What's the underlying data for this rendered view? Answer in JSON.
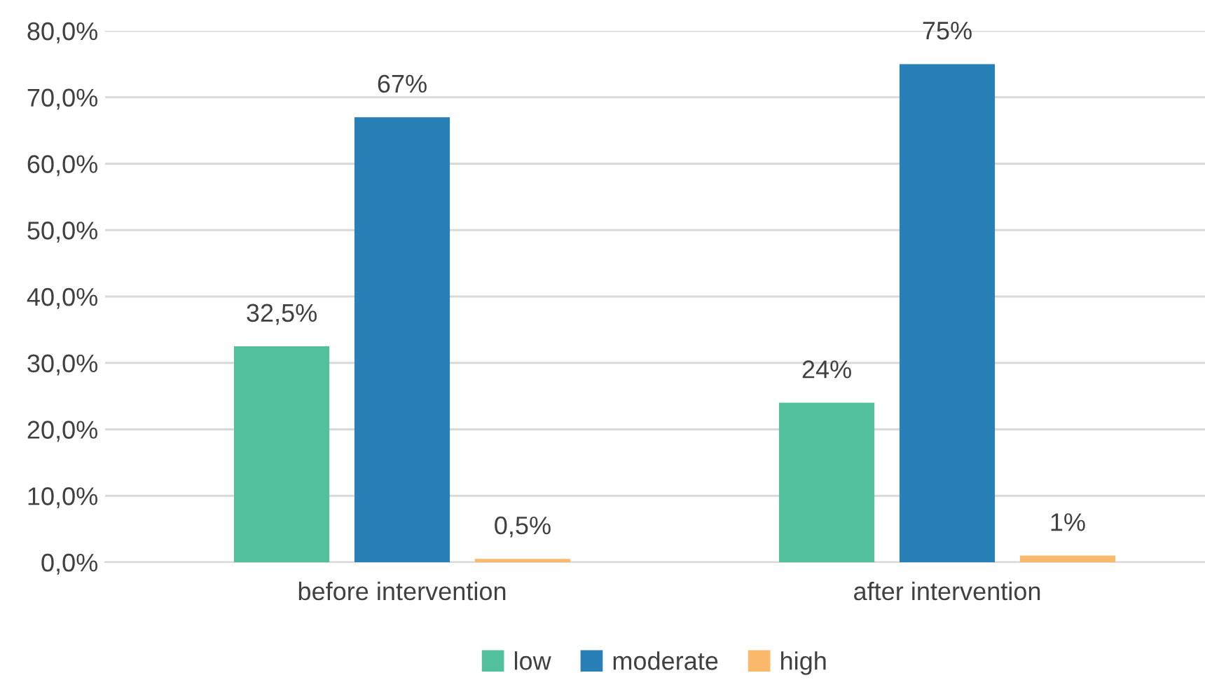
{
  "chart_data": {
    "type": "bar",
    "categories": [
      "before intervention",
      "after intervention"
    ],
    "series": [
      {
        "name": "low",
        "color": "#52c09c",
        "values": [
          32.5,
          24
        ],
        "value_labels": [
          "32,5%",
          "24%"
        ]
      },
      {
        "name": "moderate",
        "color": "#2980b6",
        "values": [
          67,
          75
        ],
        "value_labels": [
          "67%",
          "75%"
        ]
      },
      {
        "name": "high",
        "color": "#fbb96b",
        "values": [
          0.5,
          1
        ],
        "value_labels": [
          "0,5%",
          "1%"
        ]
      }
    ],
    "ylim": [
      0,
      80
    ],
    "yticks": [
      {
        "value": 0,
        "label": "0,0%"
      },
      {
        "value": 10,
        "label": "10,0%"
      },
      {
        "value": 20,
        "label": "20,0%"
      },
      {
        "value": 30,
        "label": "30,0%"
      },
      {
        "value": 40,
        "label": "40,0%"
      },
      {
        "value": 50,
        "label": "50,0%"
      },
      {
        "value": 60,
        "label": "60,0%"
      },
      {
        "value": 70,
        "label": "70,0%"
      },
      {
        "value": 80,
        "label": "80,0%"
      }
    ],
    "grid": "y",
    "legend": "bottom"
  }
}
